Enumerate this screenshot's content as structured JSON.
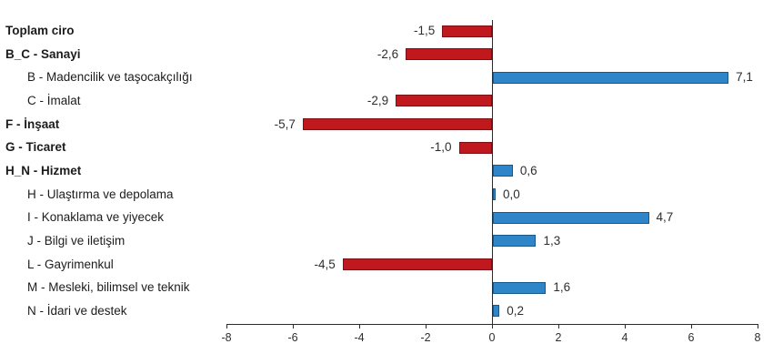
{
  "chart_data": {
    "type": "bar",
    "orientation": "horizontal",
    "title": "",
    "xlabel": "",
    "ylabel": "",
    "xlim": [
      -8,
      8
    ],
    "x_tick_values": [
      -8,
      -6,
      -4,
      -2,
      0,
      2,
      4,
      6,
      8
    ],
    "x_tick_labels": [
      "-8",
      "-6",
      "-4",
      "-2",
      "0",
      "2",
      "4",
      "6",
      "8"
    ],
    "grid": false,
    "legend": "none",
    "decimal_separator": ",",
    "rows": [
      {
        "label": "Toplam ciro",
        "value": -1.5,
        "value_label": "-1,5",
        "bold": true,
        "indent": false
      },
      {
        "label": "B_C - Sanayi",
        "value": -2.6,
        "value_label": "-2,6",
        "bold": true,
        "indent": false
      },
      {
        "label": "B - Madencilik ve taşocakçılığı",
        "value": 7.1,
        "value_label": "7,1",
        "bold": false,
        "indent": true
      },
      {
        "label": "C - İmalat",
        "value": -2.9,
        "value_label": "-2,9",
        "bold": false,
        "indent": true
      },
      {
        "label": "F - İnşaat",
        "value": -5.7,
        "value_label": "-5,7",
        "bold": true,
        "indent": false
      },
      {
        "label": "G - Ticaret",
        "value": -1.0,
        "value_label": "-1,0",
        "bold": true,
        "indent": false
      },
      {
        "label": "H_N - Hizmet",
        "value": 0.6,
        "value_label": "0,6",
        "bold": true,
        "indent": false
      },
      {
        "label": "H - Ulaştırma ve depolama",
        "value": 0.0,
        "value_label": "0,0",
        "bold": false,
        "indent": true
      },
      {
        "label": "I - Konaklama ve yiyecek",
        "value": 4.7,
        "value_label": "4,7",
        "bold": false,
        "indent": true
      },
      {
        "label": "J - Bilgi ve iletişim",
        "value": 1.3,
        "value_label": "1,3",
        "bold": false,
        "indent": true
      },
      {
        "label": "L - Gayrimenkul",
        "value": -4.5,
        "value_label": "-4,5",
        "bold": false,
        "indent": true
      },
      {
        "label": "M - Mesleki, bilimsel ve teknik",
        "value": 1.6,
        "value_label": "1,6",
        "bold": false,
        "indent": true
      },
      {
        "label": "N - İdari ve destek",
        "value": 0.2,
        "value_label": "0,2",
        "bold": false,
        "indent": true
      }
    ],
    "colors": {
      "negative_fill": "#c0181c",
      "negative_border": "#7d0f12",
      "positive_fill": "#2e86c8",
      "positive_border": "#17588c",
      "axis": "#2b2b2b",
      "text": "#1c1c1c"
    }
  }
}
